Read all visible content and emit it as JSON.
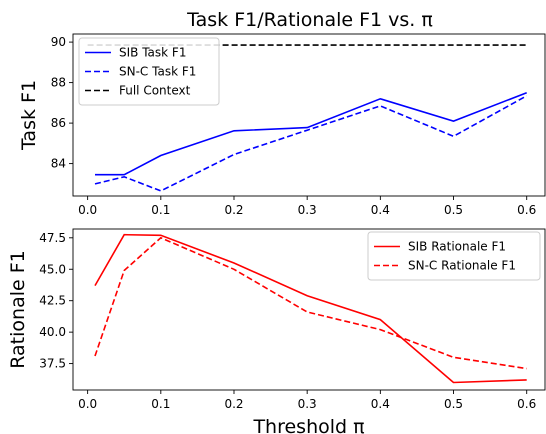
{
  "chart_data": [
    {
      "type": "line",
      "title": "Task F1/Rationale F1 vs. π",
      "xlabel": "",
      "ylabel": "Task F1",
      "xlim": [
        -0.02,
        0.625
      ],
      "ylim": [
        82.4,
        90.4
      ],
      "xticks": [
        0.0,
        0.1,
        0.2,
        0.3,
        0.4,
        0.5,
        0.6
      ],
      "xtick_labels": [
        "0.0",
        "0.1",
        "0.2",
        "0.3",
        "0.4",
        "0.5",
        "0.6"
      ],
      "yticks": [
        84,
        86,
        88,
        90
      ],
      "ytick_labels": [
        "84",
        "86",
        "88",
        "90"
      ],
      "legend_position": "upper-left",
      "grid": false,
      "series": [
        {
          "name": "SIB Task F1",
          "color": "#0000ff",
          "dash": "solid",
          "x": [
            0.01,
            0.05,
            0.1,
            0.2,
            0.3,
            0.4,
            0.5,
            0.6
          ],
          "y": [
            83.45,
            83.45,
            84.4,
            85.62,
            85.78,
            87.2,
            86.1,
            87.5
          ]
        },
        {
          "name": "SN-C Task F1",
          "color": "#0000ff",
          "dash": "dashed",
          "x": [
            0.01,
            0.05,
            0.1,
            0.2,
            0.3,
            0.4,
            0.5,
            0.6
          ],
          "y": [
            83.0,
            83.35,
            82.65,
            84.45,
            85.65,
            86.85,
            85.35,
            87.35
          ]
        },
        {
          "name": "Full Context",
          "color": "#000000",
          "dash": "dashed",
          "x": [
            0.0,
            0.6
          ],
          "y": [
            89.85,
            89.85
          ]
        }
      ]
    },
    {
      "type": "line",
      "title": "",
      "xlabel": "Threshold π",
      "ylabel": "Rationale F1",
      "xlim": [
        -0.02,
        0.625
      ],
      "ylim": [
        35.4,
        48.2
      ],
      "xticks": [
        0.0,
        0.1,
        0.2,
        0.3,
        0.4,
        0.5,
        0.6
      ],
      "xtick_labels": [
        "0.0",
        "0.1",
        "0.2",
        "0.3",
        "0.4",
        "0.5",
        "0.6"
      ],
      "yticks": [
        37.5,
        40.0,
        42.5,
        45.0,
        47.5
      ],
      "ytick_labels": [
        "37.5",
        "40.0",
        "42.5",
        "45.0",
        "47.5"
      ],
      "legend_position": "upper-right",
      "grid": false,
      "series": [
        {
          "name": "SIB Rationale F1",
          "color": "#ff0000",
          "dash": "solid",
          "x": [
            0.01,
            0.05,
            0.1,
            0.2,
            0.3,
            0.4,
            0.5,
            0.6
          ],
          "y": [
            43.7,
            47.75,
            47.7,
            45.5,
            42.9,
            41.0,
            36.0,
            36.2
          ]
        },
        {
          "name": "SN-C Rationale F1",
          "color": "#ff0000",
          "dash": "dashed",
          "x": [
            0.01,
            0.05,
            0.1,
            0.2,
            0.3,
            0.4,
            0.5,
            0.6
          ],
          "y": [
            38.1,
            44.9,
            47.5,
            45.0,
            41.6,
            40.2,
            38.0,
            37.1
          ]
        }
      ]
    }
  ]
}
